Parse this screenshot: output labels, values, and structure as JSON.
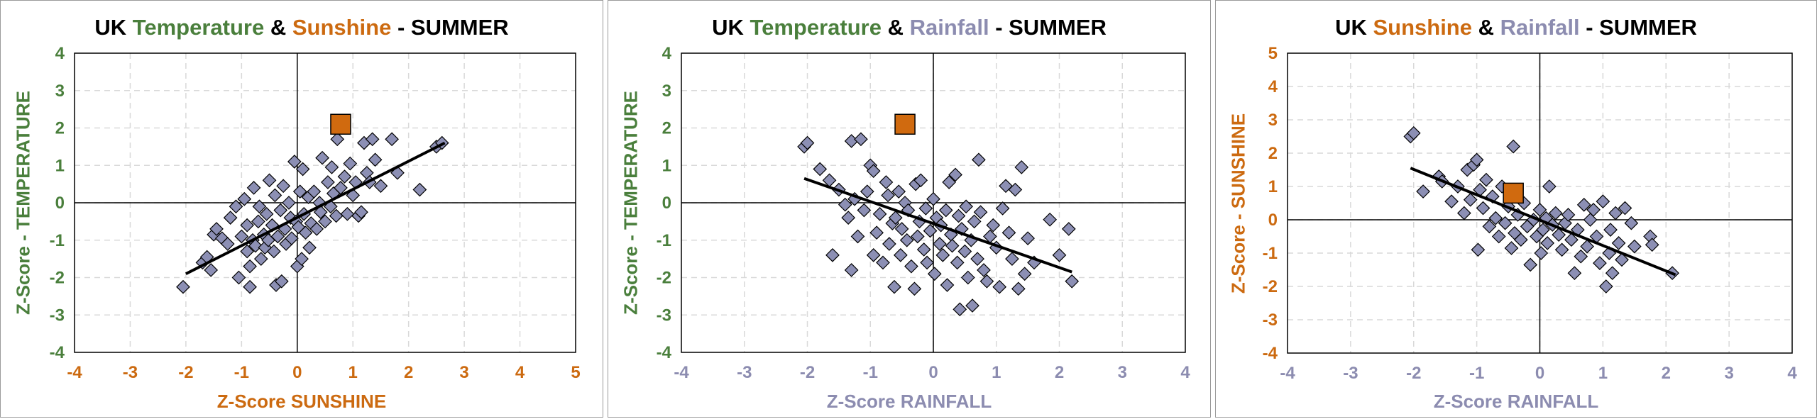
{
  "colors": {
    "temperature": "#4a7f3c",
    "sunshine": "#cc6a10",
    "rainfall": "#8c8cb0",
    "point_fill": "#8c8fb4",
    "highlight_fill": "#d06a0f",
    "trend": "#000000"
  },
  "chart_data": [
    {
      "type": "scatter",
      "title": {
        "prefix": "UK ",
        "part1": "Temperature",
        "amp": " & ",
        "part2": "Sunshine",
        "suffix": " - SUMMER"
      },
      "title_colors": [
        "temperature",
        "sunshine"
      ],
      "xlabel": "Z-Score SUNSHINE",
      "ylabel": "Z-Score - TEMPERATURE",
      "xlabel_color": "sunshine",
      "ylabel_color": "temperature",
      "xlim": [
        -4,
        5
      ],
      "ylim": [
        -4,
        4
      ],
      "xticks": [
        "-4",
        "-3",
        "-2",
        "-1",
        "0",
        "1",
        "2",
        "3",
        "4",
        "5"
      ],
      "yticks": [
        "-4",
        "-3",
        "-2",
        "-1",
        "0",
        "1",
        "2",
        "3",
        "4"
      ],
      "grid": true,
      "trendline": {
        "x": [
          -2.0,
          2.65
        ],
        "y": [
          -1.9,
          1.6
        ]
      },
      "highlight": {
        "x": 0.78,
        "y": 2.1
      },
      "points": [
        [
          -2.05,
          -2.25
        ],
        [
          -1.7,
          -1.6
        ],
        [
          -1.62,
          -1.45
        ],
        [
          -1.55,
          -1.8
        ],
        [
          -1.5,
          -0.85
        ],
        [
          -1.45,
          -0.7
        ],
        [
          -1.35,
          -0.95
        ],
        [
          -1.25,
          -1.1
        ],
        [
          -1.2,
          -0.4
        ],
        [
          -1.1,
          -0.1
        ],
        [
          -1.05,
          -2.0
        ],
        [
          -1.0,
          -0.9
        ],
        [
          -0.95,
          0.1
        ],
        [
          -0.9,
          -1.3
        ],
        [
          -0.9,
          -0.6
        ],
        [
          -0.85,
          -2.25
        ],
        [
          -0.85,
          -1.7
        ],
        [
          -0.8,
          -1.0
        ],
        [
          -0.78,
          0.4
        ],
        [
          -0.75,
          -1.15
        ],
        [
          -0.7,
          -0.5
        ],
        [
          -0.68,
          -0.1
        ],
        [
          -0.65,
          -1.5
        ],
        [
          -0.6,
          -0.85
        ],
        [
          -0.58,
          -1.2
        ],
        [
          -0.55,
          -0.3
        ],
        [
          -0.52,
          -1.0
        ],
        [
          -0.5,
          0.6
        ],
        [
          -0.45,
          -0.6
        ],
        [
          -0.42,
          -1.3
        ],
        [
          -0.4,
          0.2
        ],
        [
          -0.38,
          -2.2
        ],
        [
          -0.35,
          -0.9
        ],
        [
          -0.3,
          -0.2
        ],
        [
          -0.28,
          -2.1
        ],
        [
          -0.25,
          0.45
        ],
        [
          -0.22,
          -0.7
        ],
        [
          -0.2,
          -1.1
        ],
        [
          -0.15,
          0.0
        ],
        [
          -0.12,
          -0.4
        ],
        [
          -0.1,
          -0.95
        ],
        [
          -0.05,
          1.1
        ],
        [
          -0.02,
          -0.5
        ],
        [
          0.0,
          -1.7
        ],
        [
          0.02,
          -0.65
        ],
        [
          0.05,
          0.3
        ],
        [
          0.08,
          -1.5
        ],
        [
          0.1,
          0.9
        ],
        [
          0.12,
          -0.3
        ],
        [
          0.15,
          -0.8
        ],
        [
          0.2,
          0.15
        ],
        [
          0.22,
          -1.2
        ],
        [
          0.25,
          -0.55
        ],
        [
          0.3,
          0.3
        ],
        [
          0.35,
          -0.7
        ],
        [
          0.4,
          0.0
        ],
        [
          0.42,
          -0.25
        ],
        [
          0.45,
          1.2
        ],
        [
          0.5,
          -0.5
        ],
        [
          0.55,
          0.55
        ],
        [
          0.6,
          -0.1
        ],
        [
          0.62,
          0.95
        ],
        [
          0.65,
          0.25
        ],
        [
          0.7,
          -0.35
        ],
        [
          0.72,
          1.7
        ],
        [
          0.78,
          0.4
        ],
        [
          0.85,
          0.7
        ],
        [
          0.9,
          -0.3
        ],
        [
          0.95,
          1.05
        ],
        [
          1.0,
          0.2
        ],
        [
          1.05,
          0.55
        ],
        [
          1.1,
          -0.35
        ],
        [
          1.15,
          -0.25
        ],
        [
          1.2,
          1.6
        ],
        [
          1.25,
          0.8
        ],
        [
          1.3,
          0.55
        ],
        [
          1.35,
          1.7
        ],
        [
          1.4,
          1.15
        ],
        [
          1.5,
          0.45
        ],
        [
          1.7,
          1.7
        ],
        [
          1.8,
          0.8
        ],
        [
          2.2,
          0.35
        ],
        [
          2.5,
          1.5
        ],
        [
          2.6,
          1.6
        ]
      ]
    },
    {
      "type": "scatter",
      "title": {
        "prefix": "UK ",
        "part1": "Temperature",
        "amp": " & ",
        "part2": "Rainfall",
        "suffix": " - SUMMER"
      },
      "title_colors": [
        "temperature",
        "rainfall"
      ],
      "xlabel": "Z-Score RAINFALL",
      "ylabel": "Z-Score - TEMPERATURE",
      "xlabel_color": "rainfall",
      "ylabel_color": "temperature",
      "xlim": [
        -4,
        4
      ],
      "ylim": [
        -4,
        4
      ],
      "xticks": [
        "-4",
        "-3",
        "-2",
        "-1",
        "0",
        "1",
        "2",
        "3",
        "4"
      ],
      "yticks": [
        "-4",
        "-3",
        "-2",
        "-1",
        "0",
        "1",
        "2",
        "3",
        "4"
      ],
      "grid": true,
      "trendline": {
        "x": [
          -2.05,
          2.2
        ],
        "y": [
          0.65,
          -1.85
        ]
      },
      "highlight": {
        "x": -0.45,
        "y": 2.1
      },
      "points": [
        [
          -2.05,
          1.5
        ],
        [
          -2.0,
          1.6
        ],
        [
          -1.8,
          0.9
        ],
        [
          -1.65,
          0.6
        ],
        [
          -1.6,
          -1.4
        ],
        [
          -1.5,
          0.35
        ],
        [
          -1.4,
          -0.05
        ],
        [
          -1.35,
          -0.4
        ],
        [
          -1.3,
          1.65
        ],
        [
          -1.3,
          -1.8
        ],
        [
          -1.25,
          0.1
        ],
        [
          -1.2,
          -0.9
        ],
        [
          -1.15,
          1.7
        ],
        [
          -1.1,
          -0.2
        ],
        [
          -1.05,
          0.3
        ],
        [
          -1.0,
          1.0
        ],
        [
          -0.95,
          0.85
        ],
        [
          -0.95,
          -1.4
        ],
        [
          -0.9,
          -0.8
        ],
        [
          -0.85,
          -0.3
        ],
        [
          -0.8,
          -1.6
        ],
        [
          -0.75,
          0.55
        ],
        [
          -0.72,
          0.2
        ],
        [
          -0.7,
          -1.1
        ],
        [
          -0.65,
          -0.55
        ],
        [
          -0.62,
          -2.25
        ],
        [
          -0.6,
          -0.4
        ],
        [
          -0.55,
          0.3
        ],
        [
          -0.52,
          -1.4
        ],
        [
          -0.5,
          -0.7
        ],
        [
          -0.45,
          0.0
        ],
        [
          -0.42,
          -1.0
        ],
        [
          -0.4,
          -0.2
        ],
        [
          -0.35,
          -1.7
        ],
        [
          -0.3,
          -2.3
        ],
        [
          -0.28,
          0.5
        ],
        [
          -0.25,
          -0.9
        ],
        [
          -0.22,
          -0.5
        ],
        [
          -0.2,
          0.6
        ],
        [
          -0.15,
          -1.25
        ],
        [
          -0.12,
          -0.15
        ],
        [
          -0.1,
          -1.6
        ],
        [
          -0.05,
          -0.75
        ],
        [
          0.0,
          0.1
        ],
        [
          0.02,
          -1.9
        ],
        [
          0.05,
          -0.4
        ],
        [
          0.1,
          -1.1
        ],
        [
          0.12,
          -0.6
        ],
        [
          0.15,
          -1.4
        ],
        [
          0.2,
          -0.2
        ],
        [
          0.22,
          -2.2
        ],
        [
          0.25,
          0.55
        ],
        [
          0.28,
          -0.85
        ],
        [
          0.3,
          -1.15
        ],
        [
          0.35,
          0.75
        ],
        [
          0.38,
          -1.6
        ],
        [
          0.4,
          -0.35
        ],
        [
          0.42,
          -2.85
        ],
        [
          0.45,
          -0.7
        ],
        [
          0.5,
          -1.3
        ],
        [
          0.52,
          -0.1
        ],
        [
          0.55,
          -2.0
        ],
        [
          0.6,
          -1.0
        ],
        [
          0.62,
          -2.75
        ],
        [
          0.65,
          -0.5
        ],
        [
          0.7,
          -1.5
        ],
        [
          0.72,
          1.15
        ],
        [
          0.75,
          -0.25
        ],
        [
          0.8,
          -1.8
        ],
        [
          0.85,
          -2.1
        ],
        [
          0.9,
          -0.9
        ],
        [
          0.95,
          -0.6
        ],
        [
          1.0,
          -1.2
        ],
        [
          1.05,
          -2.25
        ],
        [
          1.1,
          -0.15
        ],
        [
          1.15,
          0.45
        ],
        [
          1.2,
          -0.8
        ],
        [
          1.25,
          -1.5
        ],
        [
          1.3,
          0.35
        ],
        [
          1.35,
          -2.3
        ],
        [
          1.4,
          0.95
        ],
        [
          1.45,
          -1.9
        ],
        [
          1.5,
          -0.95
        ],
        [
          1.6,
          -1.6
        ],
        [
          1.85,
          -0.45
        ],
        [
          2.0,
          -1.4
        ],
        [
          2.15,
          -0.7
        ],
        [
          2.2,
          -2.1
        ]
      ]
    },
    {
      "type": "scatter",
      "title": {
        "prefix": "UK ",
        "part1": "Sunshine",
        "amp": " & ",
        "part2": "Rainfall",
        "suffix": " - SUMMER"
      },
      "title_colors": [
        "sunshine",
        "rainfall"
      ],
      "xlabel": "Z-Score RAINFALL",
      "ylabel": "Z-Score - SUNSHINE",
      "xlabel_color": "rainfall",
      "ylabel_color": "sunshine",
      "xlim": [
        -4,
        4
      ],
      "ylim": [
        -4,
        5
      ],
      "xticks": [
        "-4",
        "-3",
        "-2",
        "-1",
        "0",
        "1",
        "2",
        "3",
        "4"
      ],
      "yticks": [
        "-4",
        "-3",
        "-2",
        "-1",
        "0",
        "1",
        "2",
        "3",
        "4",
        "5"
      ],
      "grid": true,
      "trendline": {
        "x": [
          -2.05,
          2.15
        ],
        "y": [
          1.55,
          -1.65
        ]
      },
      "highlight": {
        "x": -0.42,
        "y": 0.8
      },
      "points": [
        [
          -2.05,
          2.5
        ],
        [
          -2.0,
          2.6
        ],
        [
          -1.85,
          0.85
        ],
        [
          -1.6,
          1.3
        ],
        [
          -1.55,
          1.15
        ],
        [
          -1.4,
          0.55
        ],
        [
          -1.3,
          1.0
        ],
        [
          -1.2,
          0.2
        ],
        [
          -1.15,
          1.5
        ],
        [
          -1.1,
          0.6
        ],
        [
          -1.05,
          1.65
        ],
        [
          -1.0,
          1.8
        ],
        [
          -0.98,
          -0.9
        ],
        [
          -0.95,
          0.9
        ],
        [
          -0.9,
          0.35
        ],
        [
          -0.85,
          1.2
        ],
        [
          -0.8,
          -0.2
        ],
        [
          -0.75,
          0.7
        ],
        [
          -0.7,
          0.05
        ],
        [
          -0.65,
          -0.5
        ],
        [
          -0.6,
          1.0
        ],
        [
          -0.55,
          -0.1
        ],
        [
          -0.5,
          0.4
        ],
        [
          -0.45,
          -0.85
        ],
        [
          -0.42,
          2.2
        ],
        [
          -0.4,
          -0.4
        ],
        [
          -0.35,
          0.15
        ],
        [
          -0.3,
          -0.6
        ],
        [
          -0.25,
          0.5
        ],
        [
          -0.2,
          -0.2
        ],
        [
          -0.15,
          -1.35
        ],
        [
          -0.1,
          0.0
        ],
        [
          -0.05,
          -0.5
        ],
        [
          0.0,
          0.3
        ],
        [
          0.02,
          -1.0
        ],
        [
          0.05,
          -0.3
        ],
        [
          0.1,
          0.05
        ],
        [
          0.12,
          -0.7
        ],
        [
          0.15,
          1.0
        ],
        [
          0.2,
          -0.15
        ],
        [
          0.25,
          0.2
        ],
        [
          0.3,
          -0.45
        ],
        [
          0.35,
          -0.9
        ],
        [
          0.4,
          -0.1
        ],
        [
          0.45,
          0.15
        ],
        [
          0.5,
          -0.6
        ],
        [
          0.55,
          -1.6
        ],
        [
          0.6,
          -0.3
        ],
        [
          0.65,
          -1.1
        ],
        [
          0.7,
          0.45
        ],
        [
          0.75,
          -0.8
        ],
        [
          0.8,
          0.0
        ],
        [
          0.85,
          0.3
        ],
        [
          0.9,
          -0.5
        ],
        [
          0.95,
          -1.3
        ],
        [
          1.0,
          0.55
        ],
        [
          1.05,
          -2.0
        ],
        [
          1.1,
          -1.0
        ],
        [
          1.12,
          -0.3
        ],
        [
          1.15,
          -1.6
        ],
        [
          1.2,
          0.2
        ],
        [
          1.25,
          -0.7
        ],
        [
          1.3,
          -1.2
        ],
        [
          1.35,
          0.35
        ],
        [
          1.45,
          -0.1
        ],
        [
          1.5,
          -0.8
        ],
        [
          1.75,
          -0.5
        ],
        [
          1.78,
          -0.75
        ],
        [
          2.1,
          -1.6
        ]
      ]
    }
  ]
}
